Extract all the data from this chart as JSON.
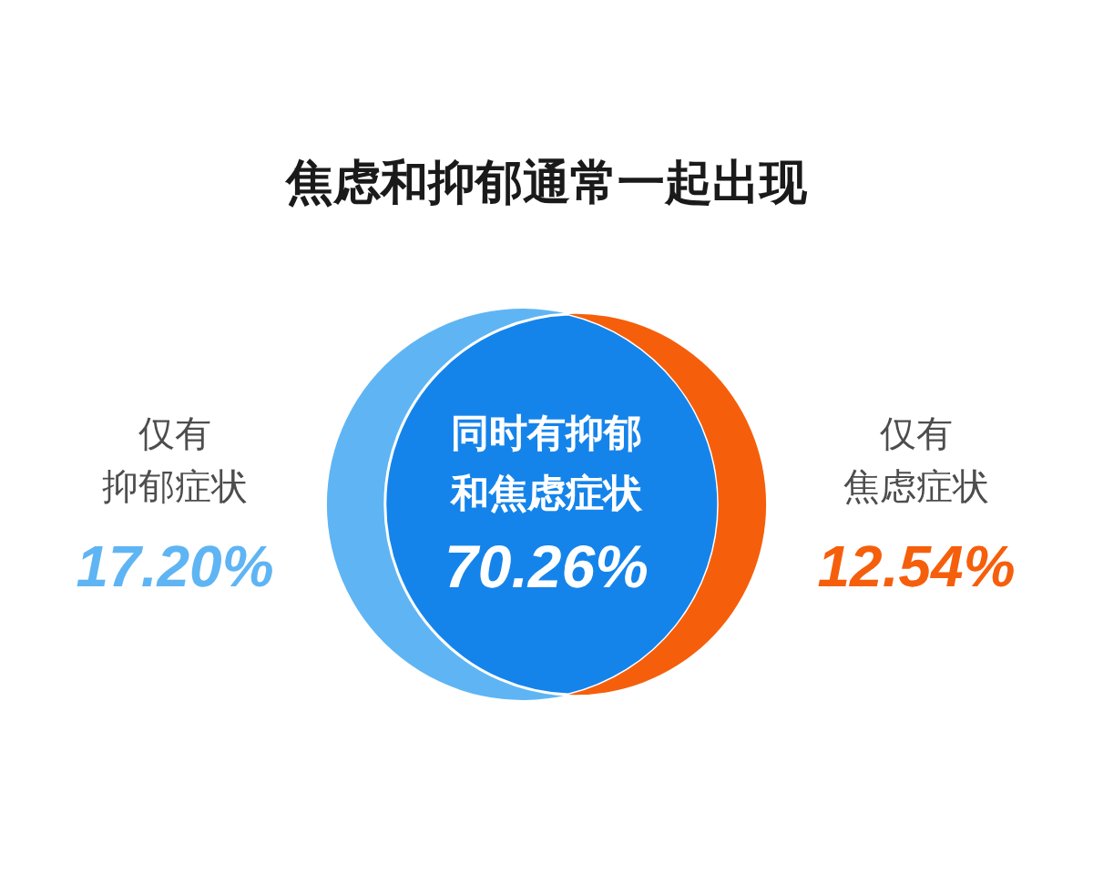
{
  "chart_data": {
    "type": "other",
    "title": "焦虑和抑郁通常一起出现",
    "categories": [
      "仅有抑郁症状",
      "同时有抑郁和焦虑症状",
      "仅有焦虑症状"
    ],
    "values": [
      17.2,
      70.26,
      12.54
    ],
    "value_labels": [
      "17.20%",
      "70.26%",
      "12.54%"
    ],
    "colors": [
      "#5fb5f3",
      "#1584ea",
      "#f55f0c"
    ]
  }
}
